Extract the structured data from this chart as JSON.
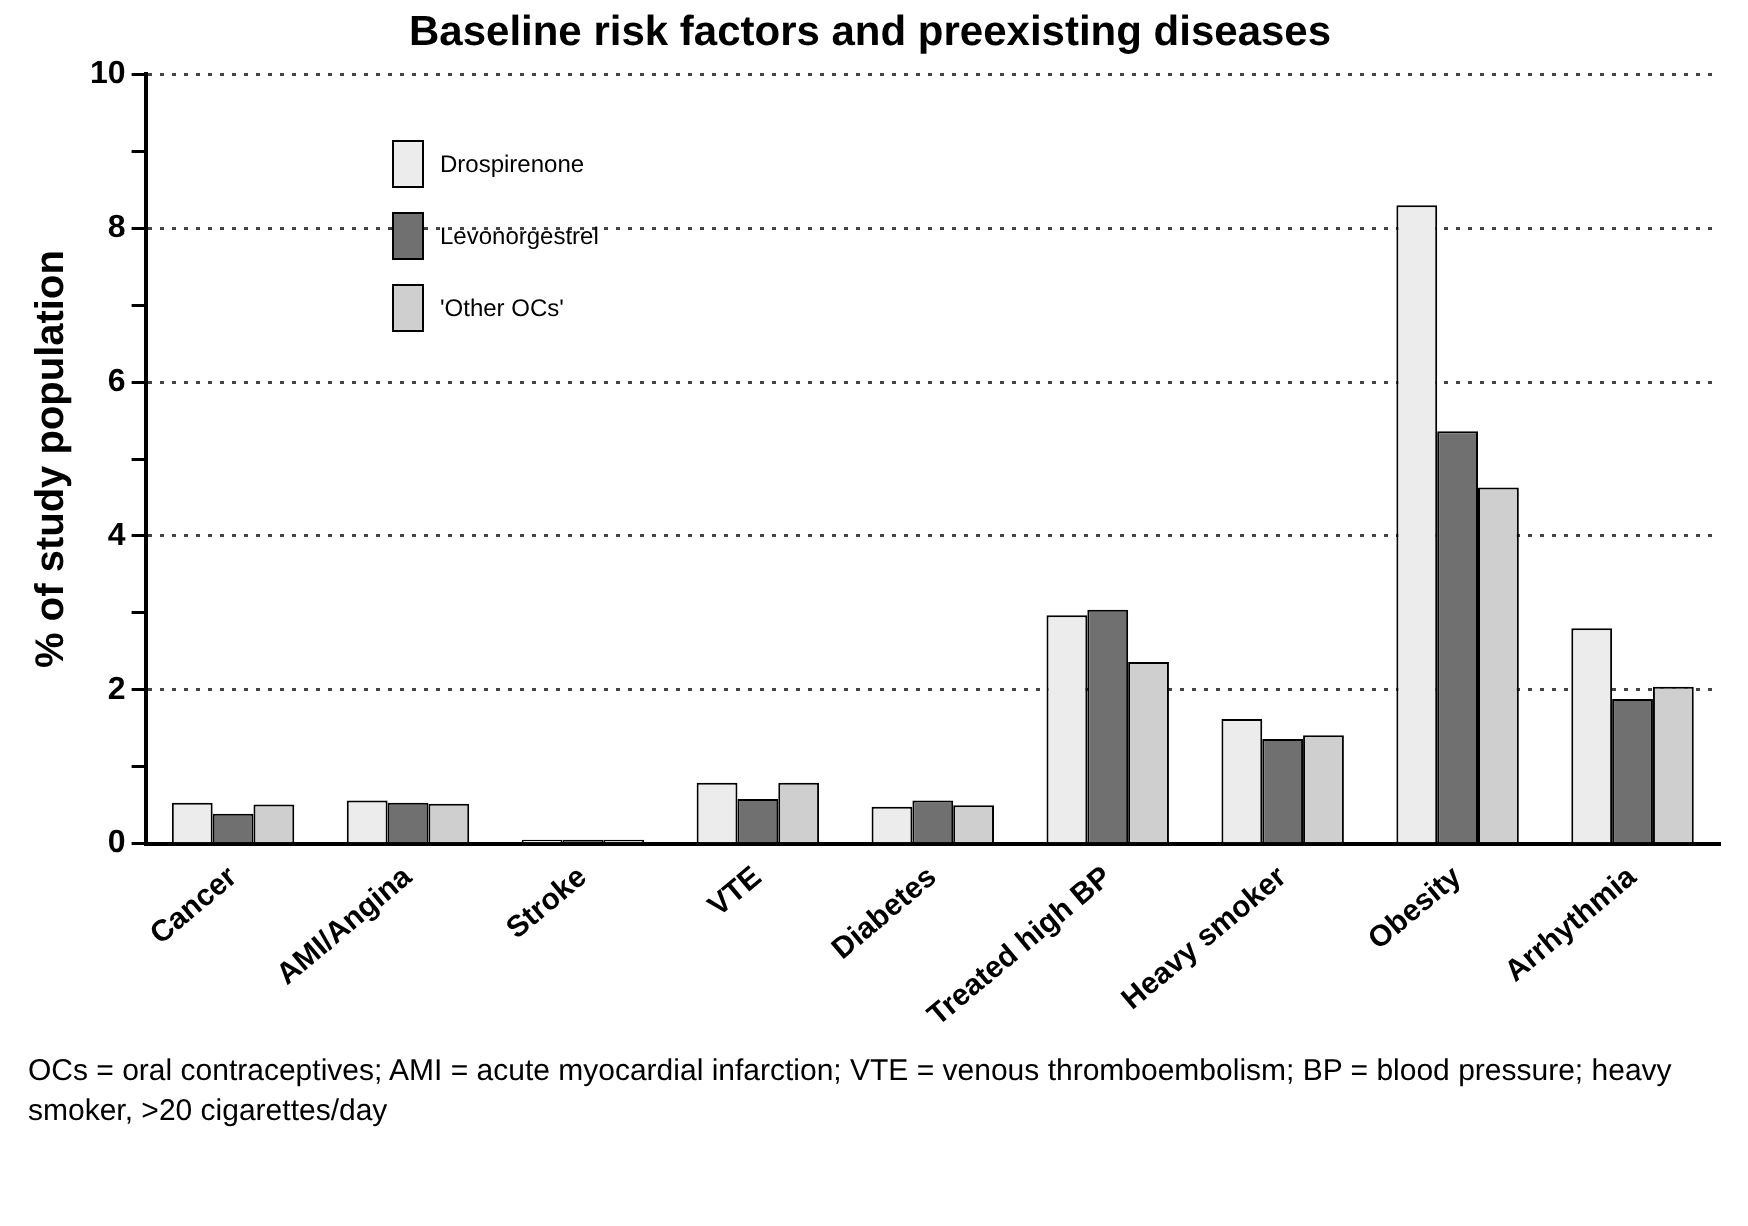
{
  "chart_data": {
    "type": "bar",
    "title": "Baseline risk factors and preexisting diseases",
    "ylabel": "% of study population",
    "categories": [
      "Cancer",
      "AMI/Angina",
      "Stroke",
      "VTE",
      "Diabetes",
      "Treated high BP",
      "Heavy smoker",
      "Obesity",
      "Arrhythmia"
    ],
    "series": [
      {
        "name": "Drospirenone",
        "color": "#ececec",
        "values": [
          0.53,
          0.56,
          0.05,
          0.79,
          0.48,
          2.97,
          1.62,
          8.3,
          2.8
        ]
      },
      {
        "name": "Levonorgestrel",
        "color": "#707070",
        "values": [
          0.39,
          0.53,
          0.05,
          0.58,
          0.56,
          3.04,
          1.36,
          5.36,
          1.88
        ]
      },
      {
        "name": "'Other OCs'",
        "color": "#cfcfcf",
        "values": [
          0.51,
          0.52,
          0.05,
          0.79,
          0.5,
          2.36,
          1.41,
          4.63,
          2.04
        ]
      }
    ],
    "ylim": [
      0,
      10
    ],
    "yticks": [
      0,
      {
        "value": 1,
        "label": null
      },
      2,
      {
        "value": 3,
        "label": null
      },
      4,
      {
        "value": 5,
        "label": null
      },
      6,
      {
        "value": 7,
        "label": null
      },
      8,
      {
        "value": 9,
        "label": null
      },
      10
    ],
    "grid": "y",
    "legend": "top left",
    "annotations": [
      "OCs = oral contraceptives; AMI = acute myocardial infarction; VTE = venous thromboembolism; BP = blood pressure; heavy smoker, >20 cigarettes/day"
    ]
  }
}
